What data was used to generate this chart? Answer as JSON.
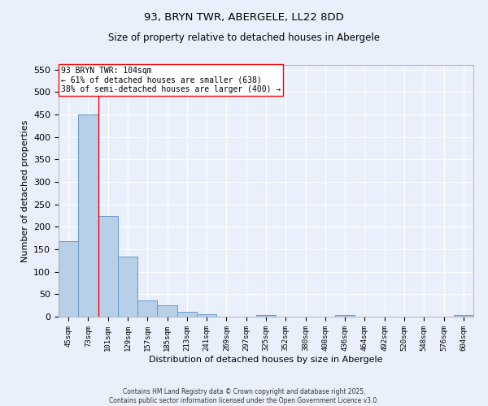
{
  "title1": "93, BRYN TWR, ABERGELE, LL22 8DD",
  "title2": "Size of property relative to detached houses in Abergele",
  "xlabel": "Distribution of detached houses by size in Abergele",
  "ylabel": "Number of detached properties",
  "categories": [
    "45sqm",
    "73sqm",
    "101sqm",
    "129sqm",
    "157sqm",
    "185sqm",
    "213sqm",
    "241sqm",
    "269sqm",
    "297sqm",
    "325sqm",
    "352sqm",
    "380sqm",
    "408sqm",
    "436sqm",
    "464sqm",
    "492sqm",
    "520sqm",
    "548sqm",
    "576sqm",
    "604sqm"
  ],
  "values": [
    168,
    449,
    224,
    133,
    37,
    26,
    10,
    5,
    0,
    0,
    4,
    0,
    0,
    0,
    4,
    0,
    0,
    0,
    0,
    0,
    4
  ],
  "bar_color": "#b8cfe8",
  "bar_edge_color": "#6699cc",
  "annotation_box_text": "93 BRYN TWR: 104sqm\n← 61% of detached houses are smaller (638)\n38% of semi-detached houses are larger (400) →",
  "red_line_x": 1.5,
  "ylim": [
    0,
    560
  ],
  "yticks": [
    0,
    50,
    100,
    150,
    200,
    250,
    300,
    350,
    400,
    450,
    500,
    550
  ],
  "background_color": "#eaf0fb",
  "grid_color": "#ffffff",
  "footer1": "Contains HM Land Registry data © Crown copyright and database right 2025.",
  "footer2": "Contains public sector information licensed under the Open Government Licence v3.0."
}
